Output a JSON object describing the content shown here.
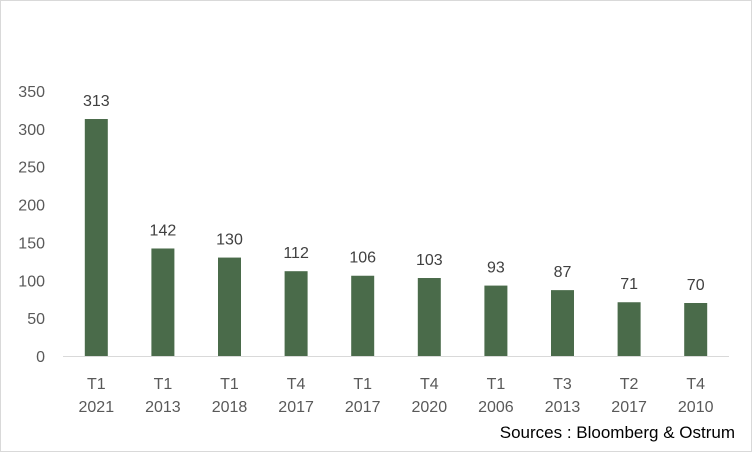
{
  "chart_data": {
    "type": "bar",
    "title": "",
    "xlabel": "",
    "ylabel": "",
    "categories": [
      [
        "T1",
        "2021"
      ],
      [
        "T1",
        "2013"
      ],
      [
        "T1",
        "2018"
      ],
      [
        "T4",
        "2017"
      ],
      [
        "T1",
        "2017"
      ],
      [
        "T4",
        "2020"
      ],
      [
        "T1",
        "2006"
      ],
      [
        "T3",
        "2013"
      ],
      [
        "T2",
        "2017"
      ],
      [
        "T4",
        "2010"
      ]
    ],
    "values": [
      313,
      142,
      130,
      112,
      106,
      103,
      93,
      87,
      71,
      70
    ],
    "data_labels": [
      "313",
      "142",
      "130",
      "112",
      "106",
      "103",
      "93",
      "87",
      "71",
      "70"
    ],
    "ylim": [
      0,
      350
    ],
    "yticks": [
      0,
      50,
      100,
      150,
      200,
      250,
      300,
      350
    ],
    "ytick_labels": [
      "0",
      "50",
      "100",
      "150",
      "200",
      "250",
      "300",
      "350"
    ],
    "grid": false,
    "legend": "none",
    "bar_color": "#4a6b4a"
  },
  "source_note": "Sources : Bloomberg & Ostrum"
}
